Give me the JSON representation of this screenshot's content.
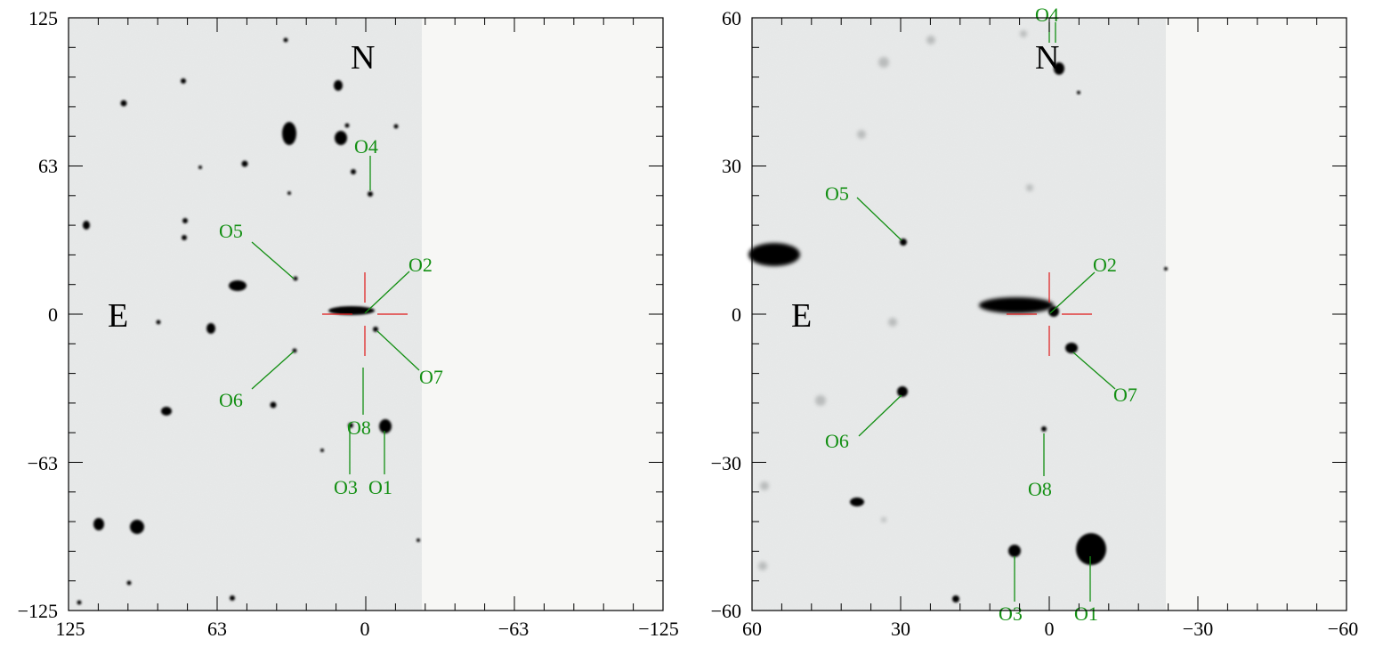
{
  "panels": [
    {
      "id": "left",
      "x_ticks": [
        "125",
        "63",
        "0",
        "−63",
        "−125"
      ],
      "y_ticks": [
        "125",
        "63",
        "0",
        "−63",
        "−125"
      ],
      "compass": {
        "north": "N",
        "east": "E"
      },
      "objects": [
        "O1",
        "O2",
        "O3",
        "O4",
        "O5",
        "O6",
        "O7",
        "O8"
      ]
    },
    {
      "id": "right",
      "x_ticks": [
        "60",
        "30",
        "0",
        "−30",
        "−60"
      ],
      "y_ticks": [
        "60",
        "30",
        "0",
        "−30",
        "−60"
      ],
      "compass": {
        "north": "N",
        "east": "E"
      },
      "objects": [
        "O1",
        "O2",
        "O3",
        "O4",
        "O5",
        "O6",
        "O7",
        "O8"
      ]
    }
  ],
  "colors": {
    "label": "#138f13",
    "crosshair": "#e01818",
    "sky": "#e9ebeb",
    "blank": "#f7f7f5",
    "frame": "#000000"
  }
}
